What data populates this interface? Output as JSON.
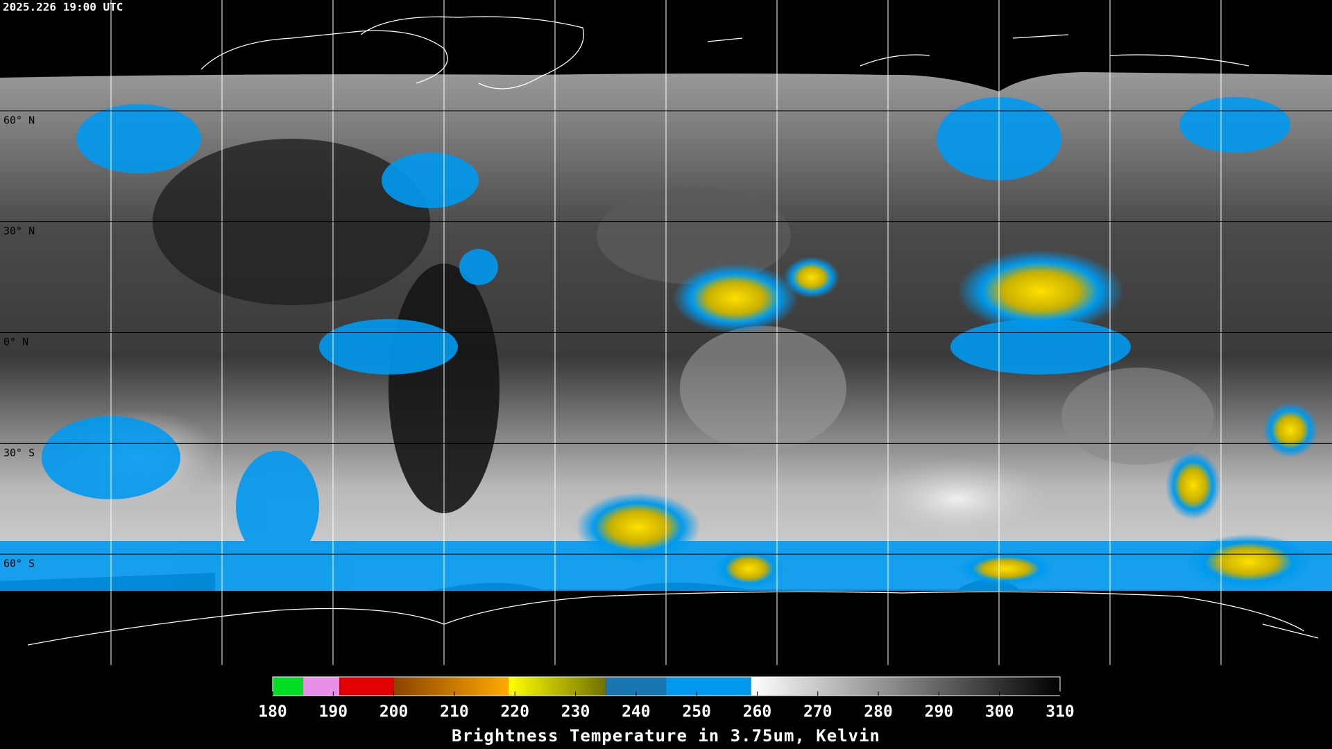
{
  "header": {
    "timestamp": "2025.226 19:00 UTC"
  },
  "map": {
    "lat_lines": [
      {
        "value": 60,
        "label": "60° N"
      },
      {
        "value": 30,
        "label": "30° N"
      },
      {
        "value": 0,
        "label": "0° N"
      },
      {
        "value": -30,
        "label": "30° S"
      },
      {
        "value": -60,
        "label": "60° S"
      }
    ],
    "lat_range": [
      90,
      -90
    ]
  },
  "colorbar": {
    "lim": [
      180,
      310
    ],
    "ticks": [
      180,
      190,
      200,
      210,
      220,
      230,
      240,
      250,
      260,
      270,
      280,
      290,
      300,
      310
    ],
    "segments": [
      {
        "from": 180,
        "to": 185,
        "colors": [
          "#00dd22",
          "#00dd22"
        ]
      },
      {
        "from": 185,
        "to": 191,
        "colors": [
          "#e890e8",
          "#e890e8"
        ]
      },
      {
        "from": 191,
        "to": 200,
        "colors": [
          "#e00000",
          "#e00000"
        ]
      },
      {
        "from": 200,
        "to": 219,
        "colors": [
          "#8a4400",
          "#ffaa00"
        ]
      },
      {
        "from": 219,
        "to": 235,
        "colors": [
          "#ffff00",
          "#707000"
        ]
      },
      {
        "from": 235,
        "to": 245,
        "colors": [
          "#1a76b0",
          "#1a76b0"
        ]
      },
      {
        "from": 245,
        "to": 259,
        "colors": [
          "#0099ee",
          "#0099ee"
        ]
      },
      {
        "from": 259,
        "to": 310,
        "colors": [
          "#ffffff",
          "#000000"
        ]
      }
    ],
    "label": "Brightness Temperature in 3.75um, Kelvin"
  }
}
